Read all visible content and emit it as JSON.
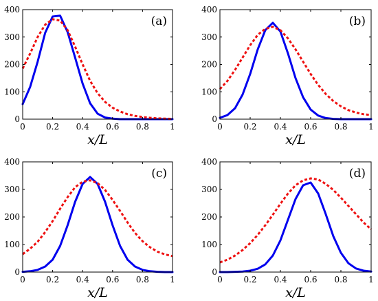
{
  "colors": {
    "solid_series": "#0000ee",
    "dashed_series": "#ee1111"
  },
  "chart_data": [
    {
      "type": "line",
      "label": "(a)",
      "xlabel": "x/L",
      "ylabel": "",
      "title": "",
      "xlim": [
        0,
        1
      ],
      "ylim": [
        0,
        400
      ],
      "xticks": [
        0,
        0.2,
        0.4,
        0.6,
        0.8,
        1
      ],
      "xtick_labels": [
        "0",
        "0.2",
        "0.4",
        "0.6",
        "0.8",
        "1"
      ],
      "yticks": [
        0,
        100,
        200,
        300,
        400
      ],
      "ytick_labels": [
        "0",
        "100",
        "200",
        "300",
        "400"
      ],
      "grid": false,
      "x": [
        0,
        0.05,
        0.1,
        0.15,
        0.2,
        0.25,
        0.3,
        0.35,
        0.4,
        0.45,
        0.5,
        0.55,
        0.6,
        0.65,
        0.7,
        0.75,
        0.8,
        0.85,
        0.9,
        0.95,
        1
      ],
      "series": [
        {
          "style": "solid",
          "color": "#0000ee",
          "values": [
            55,
            118,
            210,
            315,
            375,
            378,
            318,
            225,
            130,
            58,
            20,
            6,
            2,
            0,
            0,
            0,
            0,
            0,
            0,
            0,
            0
          ]
        },
        {
          "style": "dashed",
          "color": "#ee1111",
          "values": [
            185,
            240,
            300,
            345,
            365,
            360,
            325,
            265,
            200,
            140,
            95,
            63,
            42,
            28,
            18,
            12,
            8,
            5,
            3,
            2,
            1
          ]
        }
      ]
    },
    {
      "type": "line",
      "label": "(b)",
      "xlabel": "x/L",
      "ylabel": "",
      "title": "",
      "xlim": [
        0,
        1
      ],
      "ylim": [
        0,
        400
      ],
      "xticks": [
        0,
        0.2,
        0.4,
        0.6,
        0.8,
        1
      ],
      "xtick_labels": [
        "0",
        "0.2",
        "0.4",
        "0.6",
        "0.8",
        "1"
      ],
      "yticks": [
        0,
        100,
        200,
        300,
        400
      ],
      "ytick_labels": [
        "0",
        "100",
        "200",
        "300",
        "400"
      ],
      "grid": false,
      "x": [
        0,
        0.05,
        0.1,
        0.15,
        0.2,
        0.25,
        0.3,
        0.35,
        0.4,
        0.45,
        0.5,
        0.55,
        0.6,
        0.65,
        0.7,
        0.75,
        0.8,
        0.85,
        0.9,
        0.95,
        1
      ],
      "series": [
        {
          "style": "solid",
          "color": "#0000ee",
          "values": [
            5,
            15,
            40,
            90,
            165,
            255,
            325,
            352,
            320,
            240,
            150,
            80,
            35,
            13,
            4,
            1,
            0,
            0,
            0,
            0,
            0
          ]
        },
        {
          "style": "dashed",
          "color": "#ee1111",
          "values": [
            110,
            140,
            180,
            225,
            270,
            308,
            330,
            337,
            325,
            295,
            255,
            210,
            165,
            125,
            92,
            66,
            47,
            33,
            24,
            18,
            15
          ]
        }
      ]
    },
    {
      "type": "line",
      "label": "(c)",
      "xlabel": "x/L",
      "ylabel": "",
      "title": "",
      "xlim": [
        0,
        1
      ],
      "ylim": [
        0,
        400
      ],
      "xticks": [
        0,
        0.2,
        0.4,
        0.6,
        0.8,
        1
      ],
      "xtick_labels": [
        "0",
        "0.2",
        "0.4",
        "0.6",
        "0.8",
        "1"
      ],
      "yticks": [
        0,
        100,
        200,
        300,
        400
      ],
      "ytick_labels": [
        "0",
        "100",
        "200",
        "300",
        "400"
      ],
      "grid": false,
      "x": [
        0,
        0.05,
        0.1,
        0.15,
        0.2,
        0.25,
        0.3,
        0.35,
        0.4,
        0.45,
        0.5,
        0.55,
        0.6,
        0.65,
        0.7,
        0.75,
        0.8,
        0.85,
        0.9,
        0.95,
        1
      ],
      "series": [
        {
          "style": "solid",
          "color": "#0000ee",
          "values": [
            1,
            3,
            8,
            20,
            45,
            95,
            170,
            255,
            320,
            345,
            320,
            255,
            170,
            95,
            45,
            20,
            8,
            3,
            1,
            0,
            0
          ]
        },
        {
          "style": "dashed",
          "color": "#ee1111",
          "values": [
            65,
            85,
            110,
            145,
            185,
            230,
            272,
            308,
            328,
            333,
            323,
            298,
            262,
            222,
            180,
            142,
            112,
            90,
            74,
            64,
            58
          ]
        }
      ]
    },
    {
      "type": "line",
      "label": "(d)",
      "xlabel": "x/L",
      "ylabel": "",
      "title": "",
      "xlim": [
        0,
        1
      ],
      "ylim": [
        0,
        400
      ],
      "xticks": [
        0,
        0.2,
        0.4,
        0.6,
        0.8,
        1
      ],
      "xtick_labels": [
        "0",
        "0.2",
        "0.4",
        "0.6",
        "0.8",
        "1"
      ],
      "yticks": [
        0,
        100,
        200,
        300,
        400
      ],
      "ytick_labels": [
        "0",
        "100",
        "200",
        "300",
        "400"
      ],
      "grid": false,
      "x": [
        0,
        0.05,
        0.1,
        0.15,
        0.2,
        0.25,
        0.3,
        0.35,
        0.4,
        0.45,
        0.5,
        0.55,
        0.6,
        0.65,
        0.7,
        0.75,
        0.8,
        0.85,
        0.9,
        0.95,
        1
      ],
      "series": [
        {
          "style": "solid",
          "color": "#0000ee",
          "values": [
            0,
            0,
            1,
            2,
            5,
            12,
            28,
            60,
            115,
            190,
            265,
            315,
            325,
            285,
            210,
            130,
            70,
            32,
            13,
            5,
            2
          ]
        },
        {
          "style": "dashed",
          "color": "#ee1111",
          "values": [
            35,
            45,
            60,
            80,
            105,
            135,
            170,
            208,
            248,
            285,
            315,
            333,
            340,
            336,
            320,
            298,
            270,
            240,
            210,
            180,
            155
          ]
        }
      ]
    }
  ]
}
